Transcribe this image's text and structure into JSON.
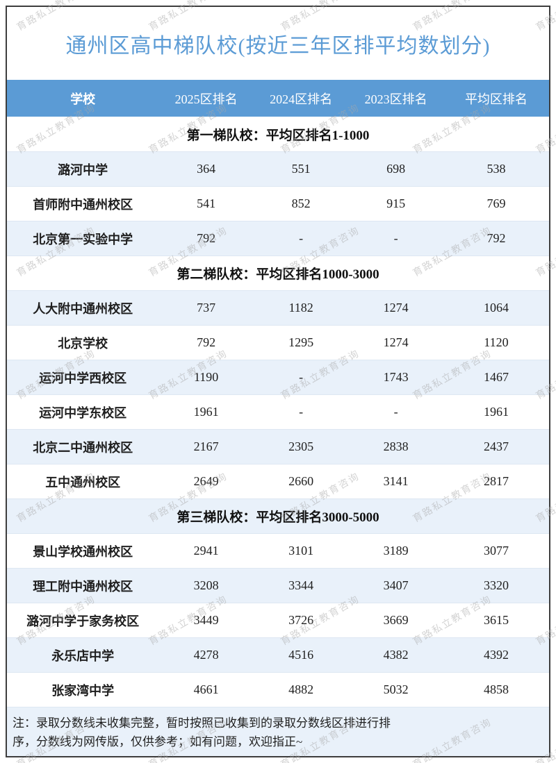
{
  "title": "通州区高中梯队校(按近三年区排平均数划分)",
  "watermark": "育路私立教育咨询",
  "colors": {
    "header_bg": "#5B9BD5",
    "title_text": "#5B9BD5",
    "alt_row_bg": "#E9F1FA",
    "outer_border": "#3d3d3d",
    "watermark_gray": "#a9a9a9"
  },
  "table": {
    "columns": [
      "学校",
      "2025区排名",
      "2024区排名",
      "2023区排名",
      "平均区排名"
    ],
    "sections": [
      {
        "header": "第一梯队校：平均区排名1-1000",
        "rows": [
          {
            "school": "潞河中学",
            "ranks": [
              "364",
              "551",
              "698",
              "538"
            ]
          },
          {
            "school": "首师附中通州校区",
            "ranks": [
              "541",
              "852",
              "915",
              "769"
            ]
          },
          {
            "school": "北京第一实验中学",
            "ranks": [
              "792",
              "-",
              "-",
              "792"
            ]
          }
        ]
      },
      {
        "header": "第二梯队校：平均区排名1000-3000",
        "rows": [
          {
            "school": "人大附中通州校区",
            "ranks": [
              "737",
              "1182",
              "1274",
              "1064"
            ]
          },
          {
            "school": "北京学校",
            "ranks": [
              "792",
              "1295",
              "1274",
              "1120"
            ]
          },
          {
            "school": "运河中学西校区",
            "ranks": [
              "1190",
              "-",
              "1743",
              "1467"
            ]
          },
          {
            "school": "运河中学东校区",
            "ranks": [
              "1961",
              "-",
              "-",
              "1961"
            ]
          },
          {
            "school": "北京二中通州校区",
            "ranks": [
              "2167",
              "2305",
              "2838",
              "2437"
            ]
          },
          {
            "school": "五中通州校区",
            "ranks": [
              "2649",
              "2660",
              "3141",
              "2817"
            ]
          }
        ]
      },
      {
        "header": "第三梯队校：平均区排名3000-5000",
        "rows": [
          {
            "school": "景山学校通州校区",
            "ranks": [
              "2941",
              "3101",
              "3189",
              "3077"
            ]
          },
          {
            "school": "理工附中通州校区",
            "ranks": [
              "3208",
              "3344",
              "3407",
              "3320"
            ]
          },
          {
            "school": "潞河中学于家务校区",
            "ranks": [
              "3449",
              "3726",
              "3669",
              "3615"
            ]
          },
          {
            "school": "永乐店中学",
            "ranks": [
              "4278",
              "4516",
              "4382",
              "4392"
            ]
          },
          {
            "school": "张家湾中学",
            "ranks": [
              "4661",
              "4882",
              "5032",
              "4858"
            ]
          }
        ]
      }
    ]
  },
  "note_line1": "注：录取分数线未收集完整，暂时按照已收集到的录取分数线区排进行排",
  "note_line2": "序，分数线为网传版，仅供参考；如有问题，欢迎指正~"
}
